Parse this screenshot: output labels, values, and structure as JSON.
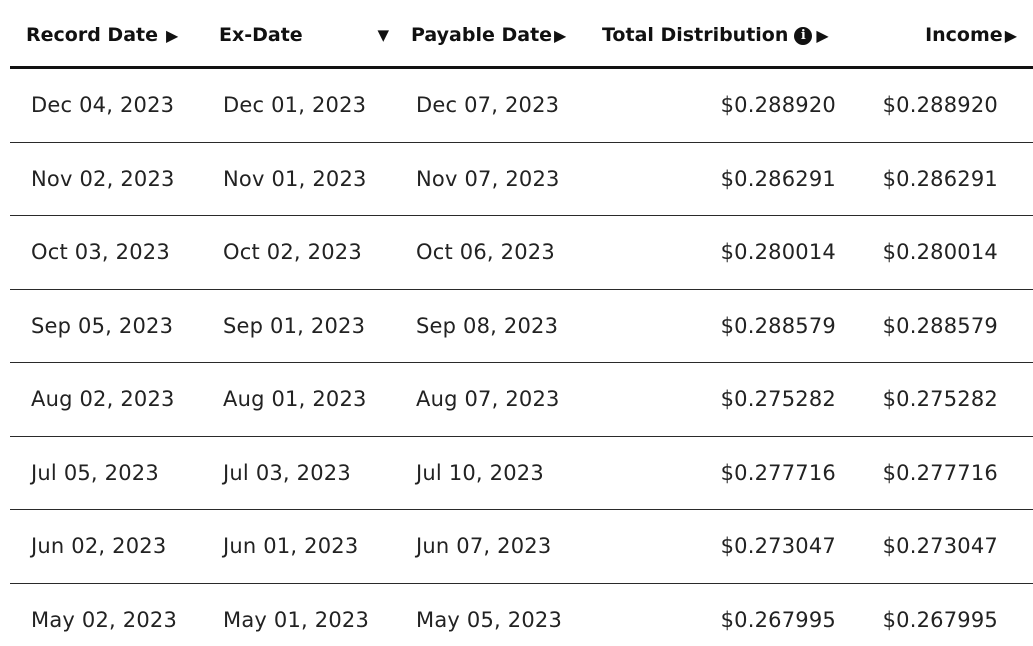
{
  "table": {
    "headers": {
      "record_date": "Record Date",
      "ex_date": "Ex-Date",
      "payable_date": "Payable Date",
      "total_distribution": "Total Distribution",
      "income": "Income"
    },
    "sort_indicators": {
      "record_date": "▶",
      "ex_date": "▼",
      "payable_date": "▶",
      "total_distribution": "▶",
      "income": "▶"
    },
    "info_icon_glyph": "i",
    "rows": [
      {
        "record_date": "Dec 04, 2023",
        "ex_date": "Dec 01, 2023",
        "payable_date": "Dec 07, 2023",
        "total_distribution": "$0.288920",
        "income": "$0.288920"
      },
      {
        "record_date": "Nov 02, 2023",
        "ex_date": "Nov 01, 2023",
        "payable_date": "Nov 07, 2023",
        "total_distribution": "$0.286291",
        "income": "$0.286291"
      },
      {
        "record_date": "Oct 03, 2023",
        "ex_date": "Oct 02, 2023",
        "payable_date": "Oct 06, 2023",
        "total_distribution": "$0.280014",
        "income": "$0.280014"
      },
      {
        "record_date": "Sep 05, 2023",
        "ex_date": "Sep 01, 2023",
        "payable_date": "Sep 08, 2023",
        "total_distribution": "$0.288579",
        "income": "$0.288579"
      },
      {
        "record_date": "Aug 02, 2023",
        "ex_date": "Aug 01, 2023",
        "payable_date": "Aug 07, 2023",
        "total_distribution": "$0.275282",
        "income": "$0.275282"
      },
      {
        "record_date": "Jul 05, 2023",
        "ex_date": "Jul 03, 2023",
        "payable_date": "Jul 10, 2023",
        "total_distribution": "$0.277716",
        "income": "$0.277716"
      },
      {
        "record_date": "Jun 02, 2023",
        "ex_date": "Jun 01, 2023",
        "payable_date": "Jun 07, 2023",
        "total_distribution": "$0.273047",
        "income": "$0.273047"
      },
      {
        "record_date": "May 02, 2023",
        "ex_date": "May 01, 2023",
        "payable_date": "May 05, 2023",
        "total_distribution": "$0.267995",
        "income": "$0.267995"
      }
    ]
  }
}
